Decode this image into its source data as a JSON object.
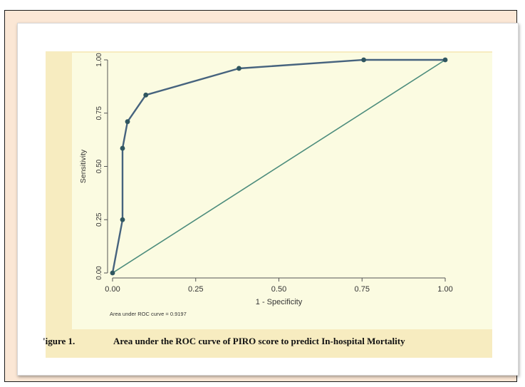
{
  "caption": {
    "label": "'igure 1.",
    "text": "Area under the ROC curve of PIRO score to predict In-hospital Mortality"
  },
  "colors": {
    "page_background": "#fbe7d5",
    "card_background": "#ffffff",
    "figure_background": "#f7ecc0",
    "plot_background": "#fbfbe1",
    "roc_line": "#46637e",
    "roc_marker": "#2f5660",
    "reference_line": "#4c8c7c"
  },
  "chart_data": {
    "type": "line",
    "xlabel": "1 - Specificity",
    "ylabel": "Sensitivity",
    "xlim": [
      0,
      1
    ],
    "ylim": [
      0,
      1
    ],
    "xticks": [
      "0.00",
      "0.25",
      "0.50",
      "0.75",
      "1.00"
    ],
    "yticks": [
      "0.00",
      "0.25",
      "0.50",
      "0.75",
      "1.00"
    ],
    "grid": false,
    "note": "Area under ROC curve = 0.9197",
    "series": [
      {
        "x": [
          0.0,
          0.03,
          0.03,
          0.045,
          0.1,
          0.38,
          0.755,
          1.0
        ],
        "y": [
          0.0,
          0.25,
          0.585,
          0.71,
          0.835,
          0.96,
          1.0,
          1.0
        ],
        "markers": true
      },
      {
        "x": [
          0.0,
          1.0
        ],
        "y": [
          0.0,
          1.0
        ],
        "markers": false
      }
    ]
  }
}
